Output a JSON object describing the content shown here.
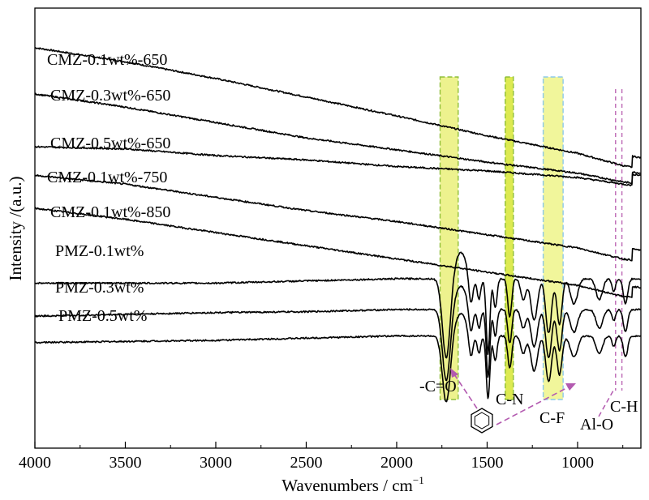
{
  "chart_data": {
    "type": "line",
    "title": "",
    "xlabel": "Wavenumbers / cm",
    "xlabel_sup": "−1",
    "ylabel": "Intensity /(a.u.)",
    "xlim": [
      4000,
      650
    ],
    "x_reversed": true,
    "xticks": [
      4000,
      3500,
      3000,
      2500,
      2000,
      1500,
      1000
    ],
    "xtick_labels": [
      "4000",
      "3500",
      "3000",
      "2500",
      "2000",
      "1500",
      "1000"
    ],
    "yticks_shown": false,
    "legend": "inline labels",
    "series": [
      {
        "name": "CMZ-0.1wt%-650",
        "offset": 9.1,
        "profile": "flat",
        "amp": 0,
        "points": [
          [
            4000,
            9.1
          ],
          [
            3500,
            8.78
          ],
          [
            3000,
            8.4
          ],
          [
            2500,
            7.98
          ],
          [
            2000,
            7.55
          ],
          [
            1500,
            7.1
          ],
          [
            1000,
            6.7
          ],
          [
            750,
            6.42
          ],
          [
            650,
            6.35
          ]
        ]
      },
      {
        "name": "CMZ-0.3wt%-650",
        "offset": 8.0,
        "profile": "flat",
        "amp": 0,
        "points": [
          [
            4000,
            8.05
          ],
          [
            3500,
            7.75
          ],
          [
            3000,
            7.4
          ],
          [
            2500,
            7.05
          ],
          [
            2000,
            6.78
          ],
          [
            1500,
            6.5
          ],
          [
            1000,
            6.25
          ],
          [
            750,
            6.05
          ],
          [
            650,
            6.0
          ]
        ]
      },
      {
        "name": "CMZ-0.5wt%-650",
        "offset": 6.85,
        "profile": "flat",
        "amp": 0,
        "points": [
          [
            4000,
            6.85
          ],
          [
            3500,
            6.8
          ],
          [
            3000,
            6.65
          ],
          [
            2500,
            6.55
          ],
          [
            2000,
            6.4
          ],
          [
            1500,
            6.3
          ],
          [
            1000,
            6.15
          ],
          [
            750,
            6.0
          ],
          [
            650,
            5.95
          ]
        ]
      },
      {
        "name": "CMZ-0.1wt%-750",
        "offset": 6.2,
        "profile": "flat",
        "amp": 0,
        "points": [
          [
            4000,
            6.2
          ],
          [
            3500,
            6.0
          ],
          [
            3000,
            5.7
          ],
          [
            2500,
            5.4
          ],
          [
            2000,
            5.15
          ],
          [
            1500,
            4.85
          ],
          [
            1000,
            4.55
          ],
          [
            750,
            4.3
          ],
          [
            650,
            4.25
          ]
        ]
      },
      {
        "name": "CMZ-0.1wt%-850",
        "offset": 5.4,
        "profile": "flat",
        "amp": 0,
        "points": [
          [
            4000,
            5.45
          ],
          [
            3500,
            5.2
          ],
          [
            3000,
            4.9
          ],
          [
            2500,
            4.6
          ],
          [
            2000,
            4.3
          ],
          [
            1500,
            4.0
          ],
          [
            1000,
            3.7
          ],
          [
            750,
            3.45
          ],
          [
            650,
            3.4
          ]
        ]
      },
      {
        "name": "PMZ-0.1wt%",
        "offset": 3.75,
        "profile": "pmz",
        "amp": 1.9,
        "points": [
          [
            4000,
            3.75
          ],
          [
            3000,
            3.75
          ],
          [
            2500,
            3.8
          ],
          [
            2000,
            3.85
          ],
          [
            1780,
            3.85
          ],
          [
            650,
            3.85
          ]
        ]
      },
      {
        "name": "PMZ-0.3wt%",
        "offset": 3.0,
        "profile": "pmz",
        "amp": 1.7,
        "points": [
          [
            4000,
            3.0
          ],
          [
            3000,
            3.08
          ],
          [
            2500,
            3.1
          ],
          [
            2000,
            3.15
          ],
          [
            1780,
            3.15
          ],
          [
            650,
            3.15
          ]
        ]
      },
      {
        "name": "PMZ-0.5wt%",
        "offset": 2.4,
        "profile": "pmz",
        "amp": 1.6,
        "points": [
          [
            4000,
            2.4
          ],
          [
            3000,
            2.45
          ],
          [
            2500,
            2.5
          ],
          [
            2000,
            2.55
          ],
          [
            1780,
            2.55
          ],
          [
            650,
            2.55
          ]
        ]
      }
    ],
    "bands": [
      {
        "label": "-C=O",
        "x_from": 1760,
        "x_to": 1660,
        "fill": "#eaf07a",
        "stroke": "#8fbf3a"
      },
      {
        "label": "C-N",
        "x_from": 1400,
        "x_to": 1355,
        "fill": "#d7e632",
        "stroke": "#8fbf3a"
      },
      {
        "label": "C-F",
        "x_from": 1190,
        "x_to": 1080,
        "fill": "#eef48a",
        "stroke": "#8cc8e8"
      }
    ],
    "dashed_lines": [
      {
        "x": 790,
        "color": "#c070b8"
      },
      {
        "x": 755,
        "color": "#c070b8"
      }
    ],
    "annotations": [
      "-C=O",
      "C-N",
      "C-F",
      "Al-O",
      "C-H"
    ],
    "colors": {
      "series": "#000000",
      "arrow": "#b35ab0",
      "band_fill": "#eaf07a"
    }
  }
}
